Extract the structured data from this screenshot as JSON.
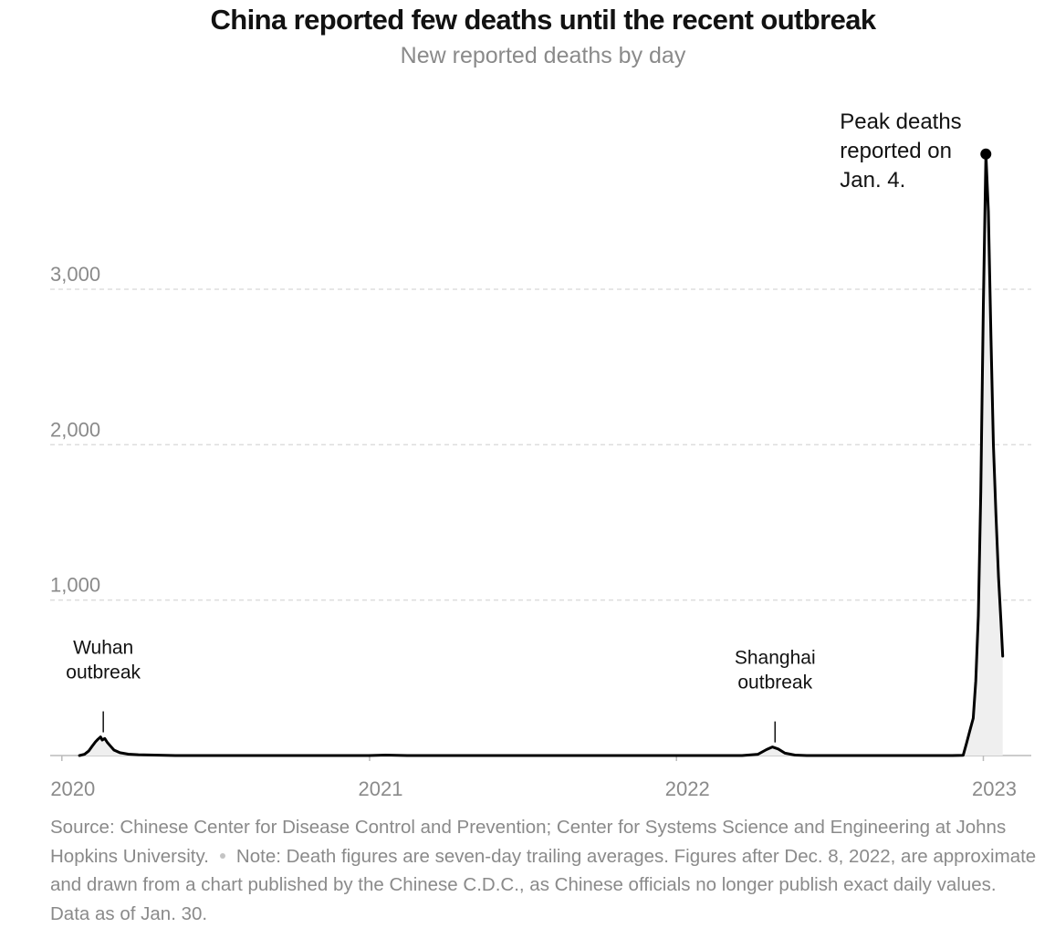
{
  "header": {
    "title": "China reported few deaths until the recent outbreak",
    "subtitle": "New reported deaths by day"
  },
  "footer": {
    "source": "Source: Chinese Center for Disease Control and Prevention; Center for Systems Science and Engineering at Johns Hopkins University.",
    "note": "Note: Death figures are seven-day trailing averages. Figures after Dec. 8, 2022, are approximate and drawn from a chart published by the Chinese C.D.C., as Chinese officials no longer publish exact daily values. Data as of Jan. 30."
  },
  "colors": {
    "line": "#000000",
    "area": "#efefef",
    "grid": "#dddddd",
    "axis_text": "#8a8a8a"
  },
  "chart_data": {
    "type": "area",
    "title": "China reported few deaths until the recent outbreak",
    "subtitle": "New reported deaths by day",
    "x_type": "date",
    "xlim": [
      "2019-12-04",
      "2023-02-27"
    ],
    "ylim": [
      0,
      3100
    ],
    "y_ticks": [
      {
        "value": 1000,
        "label": "1,000"
      },
      {
        "value": 2000,
        "label": "2,000"
      },
      {
        "value": 3000,
        "label": "3,000"
      }
    ],
    "x_ticks": [
      {
        "value": "2020-01-01",
        "label": "2020"
      },
      {
        "value": "2021-01-01",
        "label": "2021"
      },
      {
        "value": "2022-01-01",
        "label": "2022"
      },
      {
        "value": "2023-01-01",
        "label": "2023"
      }
    ],
    "grid": "horizontal-dashed",
    "series": [
      {
        "points": [
          [
            "2020-01-22",
            0
          ],
          [
            "2020-01-28",
            8
          ],
          [
            "2020-02-02",
            30
          ],
          [
            "2020-02-06",
            60
          ],
          [
            "2020-02-10",
            88
          ],
          [
            "2020-02-13",
            105
          ],
          [
            "2020-02-16",
            120
          ],
          [
            "2020-02-18",
            100
          ],
          [
            "2020-02-21",
            110
          ],
          [
            "2020-02-24",
            85
          ],
          [
            "2020-02-28",
            60
          ],
          [
            "2020-03-03",
            35
          ],
          [
            "2020-03-10",
            18
          ],
          [
            "2020-03-20",
            9
          ],
          [
            "2020-04-01",
            5
          ],
          [
            "2020-04-20",
            3
          ],
          [
            "2020-05-15",
            0
          ],
          [
            "2020-12-31",
            0
          ],
          [
            "2021-01-20",
            3
          ],
          [
            "2021-02-15",
            0
          ],
          [
            "2022-03-20",
            0
          ],
          [
            "2022-04-08",
            8
          ],
          [
            "2022-04-18",
            38
          ],
          [
            "2022-04-25",
            55
          ],
          [
            "2022-05-02",
            42
          ],
          [
            "2022-05-10",
            15
          ],
          [
            "2022-05-22",
            3
          ],
          [
            "2022-06-05",
            0
          ],
          [
            "2022-11-25",
            0
          ],
          [
            "2022-12-08",
            2
          ],
          [
            "2022-12-12",
            80
          ],
          [
            "2022-12-16",
            160
          ],
          [
            "2022-12-20",
            240
          ],
          [
            "2022-12-23",
            480
          ],
          [
            "2022-12-26",
            900
          ],
          [
            "2022-12-29",
            1700
          ],
          [
            "2023-01-01",
            2900
          ],
          [
            "2023-01-04",
            3870
          ],
          [
            "2023-01-07",
            3500
          ],
          [
            "2023-01-10",
            2700
          ],
          [
            "2023-01-13",
            2000
          ],
          [
            "2023-01-16",
            1550
          ],
          [
            "2023-01-19",
            1150
          ],
          [
            "2023-01-22",
            860
          ],
          [
            "2023-01-24",
            640
          ]
        ]
      }
    ],
    "annotations": [
      {
        "lines": [
          "Wuhan",
          "outbreak"
        ],
        "date": "2020-02-16",
        "value": 120
      },
      {
        "lines": [
          "Shanghai",
          "outbreak"
        ],
        "date": "2022-04-25",
        "value": 55
      },
      {
        "lines": [
          "Peak deaths",
          "reported on",
          "Jan. 4."
        ],
        "date": "2023-01-04",
        "value": 3870,
        "marker": "dot"
      }
    ]
  }
}
